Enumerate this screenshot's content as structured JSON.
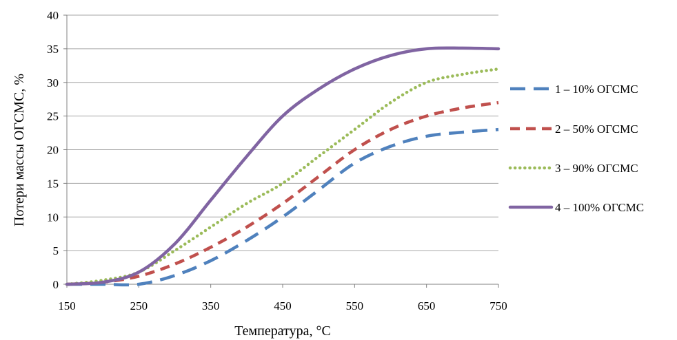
{
  "chart_data": {
    "type": "line",
    "xlabel": "Температура, °C",
    "ylabel": "Потери массы ОГСМС, %",
    "xlim": [
      150,
      750
    ],
    "ylim": [
      0,
      40
    ],
    "xticks": [
      150,
      250,
      350,
      450,
      550,
      650,
      750
    ],
    "yticks": [
      0,
      5,
      10,
      15,
      20,
      25,
      30,
      35,
      40
    ],
    "grid": "horizontal",
    "legend_position": "right",
    "series": [
      {
        "name": "1 – 10% ОГСМС",
        "color": "#4f81bd",
        "style": "long-dash",
        "x": [
          150,
          200,
          250,
          300,
          350,
          400,
          450,
          500,
          550,
          600,
          650,
          700,
          750
        ],
        "y": [
          0,
          0,
          0,
          1.3,
          3.5,
          6.5,
          10,
          14,
          18,
          20.5,
          22,
          22.6,
          23
        ]
      },
      {
        "name": "2 – 50% ОГСМС",
        "color": "#c0504d",
        "style": "dash",
        "x": [
          150,
          200,
          250,
          300,
          350,
          400,
          450,
          500,
          550,
          600,
          650,
          700,
          750
        ],
        "y": [
          0,
          0.3,
          1.2,
          3,
          5.5,
          8.5,
          12,
          16,
          20,
          23,
          25,
          26.2,
          27
        ]
      },
      {
        "name": "3 – 90% ОГСМС",
        "color": "#9bbb59",
        "style": "dot",
        "x": [
          150,
          200,
          250,
          300,
          350,
          400,
          450,
          500,
          550,
          600,
          650,
          700,
          750
        ],
        "y": [
          0,
          0.6,
          1.8,
          5,
          8.5,
          12,
          15,
          19,
          23,
          27,
          30,
          31.2,
          32
        ]
      },
      {
        "name": "4 – 100% ОГСМС",
        "color": "#8064a2",
        "style": "solid",
        "x": [
          150,
          200,
          250,
          300,
          350,
          400,
          450,
          500,
          550,
          600,
          650,
          700,
          750
        ],
        "y": [
          0,
          0.3,
          1.8,
          6,
          12.5,
          19,
          25,
          29,
          32,
          34,
          35,
          35.1,
          35
        ]
      }
    ]
  }
}
